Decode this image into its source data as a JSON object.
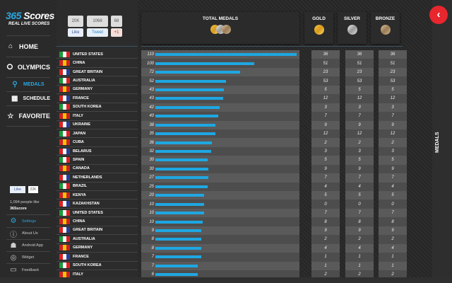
{
  "brand": {
    "logo_num": "365",
    "logo_text": "Scores",
    "tagline": "REAL LIVE SCORES"
  },
  "nav": {
    "home": "HOME",
    "olympics": "OLYMPICS",
    "medals": "MEDALS",
    "schedule": "SCHEDULE",
    "favorite": "FAVORITE"
  },
  "social": {
    "fb_count": "20K",
    "tw_count": "1068",
    "gp_count": "68",
    "fb": "Like",
    "tw": "Tweet",
    "gp": "+1"
  },
  "fbbox": {
    "like": "Like",
    "count": "22K",
    "people": "1,094 people like",
    "page": "365score"
  },
  "menu": {
    "settings": "Settings",
    "about": "About Us",
    "android": "Android App",
    "widget": "Widget",
    "feedback": "Feedback"
  },
  "headers": {
    "total": "TOTAL MEDALS",
    "gold": "GOLD",
    "silver": "SILVER",
    "bronze": "BRONZE"
  },
  "side_tab": "MEDALS",
  "colors": {
    "accent": "#1ea7e2",
    "close": "#e8262e"
  },
  "rows": [
    {
      "country": "UNITED STATES",
      "total": "110",
      "bar": 100,
      "gold": "36",
      "silver": "36",
      "bronze": "36"
    },
    {
      "country": "CHINA",
      "total": "100",
      "bar": 70,
      "gold": "51",
      "silver": "51",
      "bronze": "51"
    },
    {
      "country": "GREAT BRITAIN",
      "total": "72",
      "bar": 60,
      "gold": "23",
      "silver": "23",
      "bronze": "23"
    },
    {
      "country": "AUSTRALIA",
      "total": "52",
      "bar": 50,
      "gold": "53",
      "silver": "53",
      "bronze": "53"
    },
    {
      "country": "GERMANY",
      "total": "43",
      "bar": 48.5,
      "gold": "5",
      "silver": "5",
      "bronze": "5"
    },
    {
      "country": "FRANCE",
      "total": "43",
      "bar": 48,
      "gold": "12",
      "silver": "12",
      "bronze": "12"
    },
    {
      "country": "SOUTH KOREA",
      "total": "42",
      "bar": 45.5,
      "gold": "3",
      "silver": "3",
      "bronze": "3"
    },
    {
      "country": "ITALY",
      "total": "40",
      "bar": 44.5,
      "gold": "7",
      "silver": "7",
      "bronze": "7"
    },
    {
      "country": "UKRAINE",
      "total": "38",
      "bar": 42.5,
      "gold": "9",
      "silver": "9",
      "bronze": "9"
    },
    {
      "country": "JAPAN",
      "total": "35",
      "bar": 42.5,
      "gold": "12",
      "silver": "12",
      "bronze": "12"
    },
    {
      "country": "CUBA",
      "total": "36",
      "bar": 40,
      "gold": "2",
      "silver": "2",
      "bronze": "2"
    },
    {
      "country": "BELARUS",
      "total": "32",
      "bar": 39.5,
      "gold": "3",
      "silver": "3",
      "bronze": "3"
    },
    {
      "country": "SPAIN",
      "total": "30",
      "bar": 37,
      "gold": "5",
      "silver": "5",
      "bronze": "5"
    },
    {
      "country": "CANADA",
      "total": "30",
      "bar": 37.5,
      "gold": "9",
      "silver": "9",
      "bronze": "9"
    },
    {
      "country": "NETHERLANDS",
      "total": "27",
      "bar": 37.5,
      "gold": "7",
      "silver": "7",
      "bronze": "7"
    },
    {
      "country": "BRAZIL",
      "total": "25",
      "bar": 37,
      "gold": "4",
      "silver": "4",
      "bronze": "4"
    },
    {
      "country": "KENYA",
      "total": "20",
      "bar": 34.5,
      "gold": "5",
      "silver": "5",
      "bronze": "5"
    },
    {
      "country": "KAZAKHSTAN",
      "total": "10",
      "bar": 34.5,
      "gold": "0",
      "silver": "0",
      "bronze": "0"
    },
    {
      "country": "UNITED STATES",
      "total": "10",
      "bar": 34.5,
      "gold": "7",
      "silver": "7",
      "bronze": "7"
    },
    {
      "country": "CHINA",
      "total": "10",
      "bar": 33.5,
      "gold": "8",
      "silver": "8",
      "bronze": "8"
    },
    {
      "country": "GREAT BRITAIN",
      "total": "9",
      "bar": 32.5,
      "gold": "9",
      "silver": "9",
      "bronze": "9"
    },
    {
      "country": "AUSTRALIA",
      "total": "8",
      "bar": 32.5,
      "gold": "2",
      "silver": "2",
      "bronze": "2"
    },
    {
      "country": "GERMANY",
      "total": "8",
      "bar": 32.5,
      "gold": "4",
      "silver": "4",
      "bronze": "4"
    },
    {
      "country": "FRANCE",
      "total": "7",
      "bar": 32.5,
      "gold": "1",
      "silver": "1",
      "bronze": "1"
    },
    {
      "country": "SOUTH KOREA",
      "total": "7",
      "bar": 30,
      "gold": "1",
      "silver": "1",
      "bronze": "1"
    },
    {
      "country": "ITALY",
      "total": "6",
      "bar": 30,
      "gold": "2",
      "silver": "2",
      "bronze": "2"
    }
  ]
}
